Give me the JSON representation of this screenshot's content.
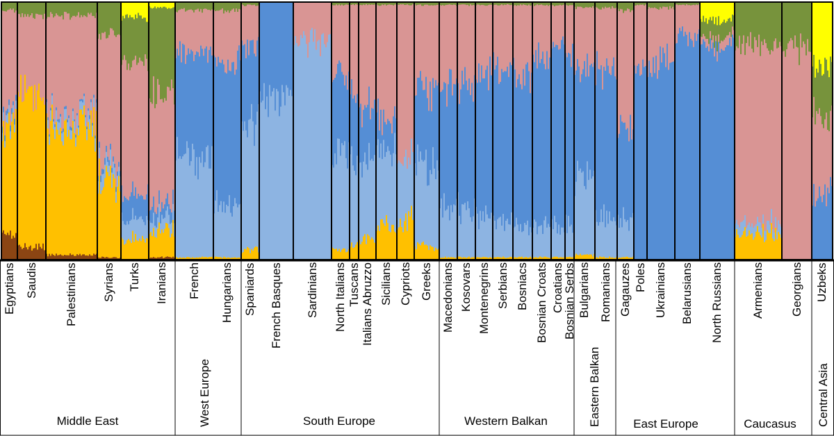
{
  "chart_data": {
    "type": "area",
    "title": "",
    "components": [
      "brown",
      "gold",
      "light-blue",
      "blue",
      "pink",
      "olive",
      "yellow"
    ],
    "colors": {
      "brown": "#8B4513",
      "gold": "#FFC000",
      "light-blue": "#8DB4E2",
      "blue": "#558ED5",
      "pink": "#D99594",
      "olive": "#77933C",
      "yellow": "#FFFF00"
    },
    "ylim": [
      0,
      1
    ],
    "populations": [
      {
        "name": "Egyptians",
        "region": "Middle East",
        "q": [
          0.1,
          0.4,
          0.03,
          0.02,
          0.42,
          0.03,
          0.0
        ]
      },
      {
        "name": "Saudis",
        "region": "Middle East",
        "q": [
          0.05,
          0.6,
          0.0,
          0.0,
          0.3,
          0.05,
          0.0
        ]
      },
      {
        "name": "Palestinians",
        "region": "Middle East",
        "q": [
          0.02,
          0.5,
          0.04,
          0.01,
          0.38,
          0.05,
          0.0
        ]
      },
      {
        "name": "Syrians",
        "region": "Middle East",
        "q": [
          0.01,
          0.3,
          0.05,
          0.02,
          0.5,
          0.12,
          0.0
        ]
      },
      {
        "name": "Turks",
        "region": "Middle East",
        "q": [
          0.0,
          0.08,
          0.08,
          0.1,
          0.5,
          0.18,
          0.06
        ]
      },
      {
        "name": "Iranians",
        "region": "Middle East",
        "q": [
          0.01,
          0.1,
          0.05,
          0.05,
          0.44,
          0.33,
          0.02
        ]
      },
      {
        "name": "French",
        "region": "West Europe",
        "q": [
          0.0,
          0.01,
          0.37,
          0.42,
          0.17,
          0.03,
          0.0
        ]
      },
      {
        "name": "Hungarians",
        "region": "West Europe",
        "q": [
          0.0,
          0.01,
          0.2,
          0.57,
          0.19,
          0.03,
          0.0
        ]
      },
      {
        "name": "Spaniards",
        "region": "South Europe",
        "q": [
          0.0,
          0.04,
          0.5,
          0.3,
          0.15,
          0.01,
          0.0
        ]
      },
      {
        "name": "French Basques",
        "region": "South Europe",
        "q": [
          0.0,
          0.0,
          0.65,
          0.35,
          0.0,
          0.0,
          0.0
        ]
      },
      {
        "name": "Sardinians",
        "region": "South Europe",
        "q": [
          0.0,
          0.0,
          0.85,
          0.0,
          0.15,
          0.0,
          0.0
        ]
      },
      {
        "name": "North Italians",
        "region": "South Europe",
        "q": [
          0.0,
          0.04,
          0.38,
          0.3,
          0.27,
          0.01,
          0.0
        ]
      },
      {
        "name": "Tuscans",
        "region": "South Europe",
        "q": [
          0.0,
          0.06,
          0.33,
          0.25,
          0.35,
          0.01,
          0.0
        ]
      },
      {
        "name": "Italians Abruzzo",
        "region": "South Europe",
        "q": [
          0.0,
          0.08,
          0.3,
          0.21,
          0.4,
          0.01,
          0.0
        ]
      },
      {
        "name": "Sicilians",
        "region": "South Europe",
        "q": [
          0.0,
          0.13,
          0.3,
          0.12,
          0.44,
          0.01,
          0.0
        ]
      },
      {
        "name": "Cypriots",
        "region": "South Europe",
        "q": [
          0.0,
          0.15,
          0.24,
          0.0,
          0.6,
          0.01,
          0.0
        ]
      },
      {
        "name": "Greeks",
        "region": "South Europe",
        "q": [
          0.0,
          0.05,
          0.3,
          0.3,
          0.34,
          0.01,
          0.0
        ]
      },
      {
        "name": "Macedonians",
        "region": "Western Balkan",
        "q": [
          0.0,
          0.01,
          0.18,
          0.48,
          0.32,
          0.01,
          0.0
        ]
      },
      {
        "name": "Kosovars",
        "region": "Western Balkan",
        "q": [
          0.0,
          0.01,
          0.18,
          0.5,
          0.3,
          0.01,
          0.0
        ]
      },
      {
        "name": "Montenegrins",
        "region": "Western Balkan",
        "q": [
          0.0,
          0.01,
          0.15,
          0.56,
          0.27,
          0.01,
          0.0
        ]
      },
      {
        "name": "Serbians",
        "region": "Western Balkan",
        "q": [
          0.0,
          0.01,
          0.15,
          0.58,
          0.25,
          0.01,
          0.0
        ]
      },
      {
        "name": "Bosniacs",
        "region": "Western Balkan",
        "q": [
          0.0,
          0.01,
          0.12,
          0.6,
          0.26,
          0.01,
          0.0
        ]
      },
      {
        "name": "Bosnian Croats",
        "region": "Western Balkan",
        "q": [
          0.0,
          0.01,
          0.12,
          0.66,
          0.2,
          0.01,
          0.0
        ]
      },
      {
        "name": "Croatians",
        "region": "Western Balkan",
        "q": [
          0.0,
          0.01,
          0.12,
          0.7,
          0.16,
          0.01,
          0.0
        ]
      },
      {
        "name": "Bosnian Serbs",
        "region": "Western Balkan",
        "q": [
          0.0,
          0.01,
          0.12,
          0.68,
          0.18,
          0.01,
          0.0
        ]
      },
      {
        "name": "Bulgarians",
        "region": "Eastern Balkan",
        "q": [
          0.0,
          0.02,
          0.3,
          0.42,
          0.24,
          0.02,
          0.0
        ]
      },
      {
        "name": "Romanians",
        "region": "Eastern Balkan",
        "q": [
          0.0,
          0.01,
          0.15,
          0.58,
          0.24,
          0.02,
          0.0
        ]
      },
      {
        "name": "Gagauzes",
        "region": "East Europe",
        "q": [
          0.0,
          0.01,
          0.15,
          0.35,
          0.46,
          0.03,
          0.0
        ]
      },
      {
        "name": "Poles",
        "region": "East Europe",
        "q": [
          0.0,
          0.0,
          0.0,
          0.75,
          0.24,
          0.01,
          0.0
        ]
      },
      {
        "name": "Ukrainians",
        "region": "East Europe",
        "q": [
          0.0,
          0.0,
          0.0,
          0.78,
          0.2,
          0.02,
          0.0
        ]
      },
      {
        "name": "Belarusians",
        "region": "East Europe",
        "q": [
          0.0,
          0.0,
          0.0,
          0.87,
          0.12,
          0.01,
          0.0
        ]
      },
      {
        "name": "North Russians",
        "region": "East Europe",
        "q": [
          0.0,
          0.0,
          0.0,
          0.83,
          0.03,
          0.07,
          0.07
        ]
      },
      {
        "name": "Armenians",
        "region": "Caucasus",
        "q": [
          0.0,
          0.1,
          0.04,
          0.0,
          0.7,
          0.16,
          0.0
        ]
      },
      {
        "name": "Georgians",
        "region": "Caucasus",
        "q": [
          0.0,
          0.0,
          0.0,
          0.0,
          0.82,
          0.18,
          0.0
        ]
      },
      {
        "name": "Uzbeks",
        "region": "Central Asia",
        "q": [
          0.0,
          0.0,
          0.0,
          0.25,
          0.3,
          0.2,
          0.25
        ]
      }
    ],
    "regions": [
      "Middle East",
      "West Europe",
      "South Europe",
      "Western Balkan",
      "Eastern Balkan",
      "East Europe",
      "Caucasus",
      "Central Asia"
    ]
  }
}
